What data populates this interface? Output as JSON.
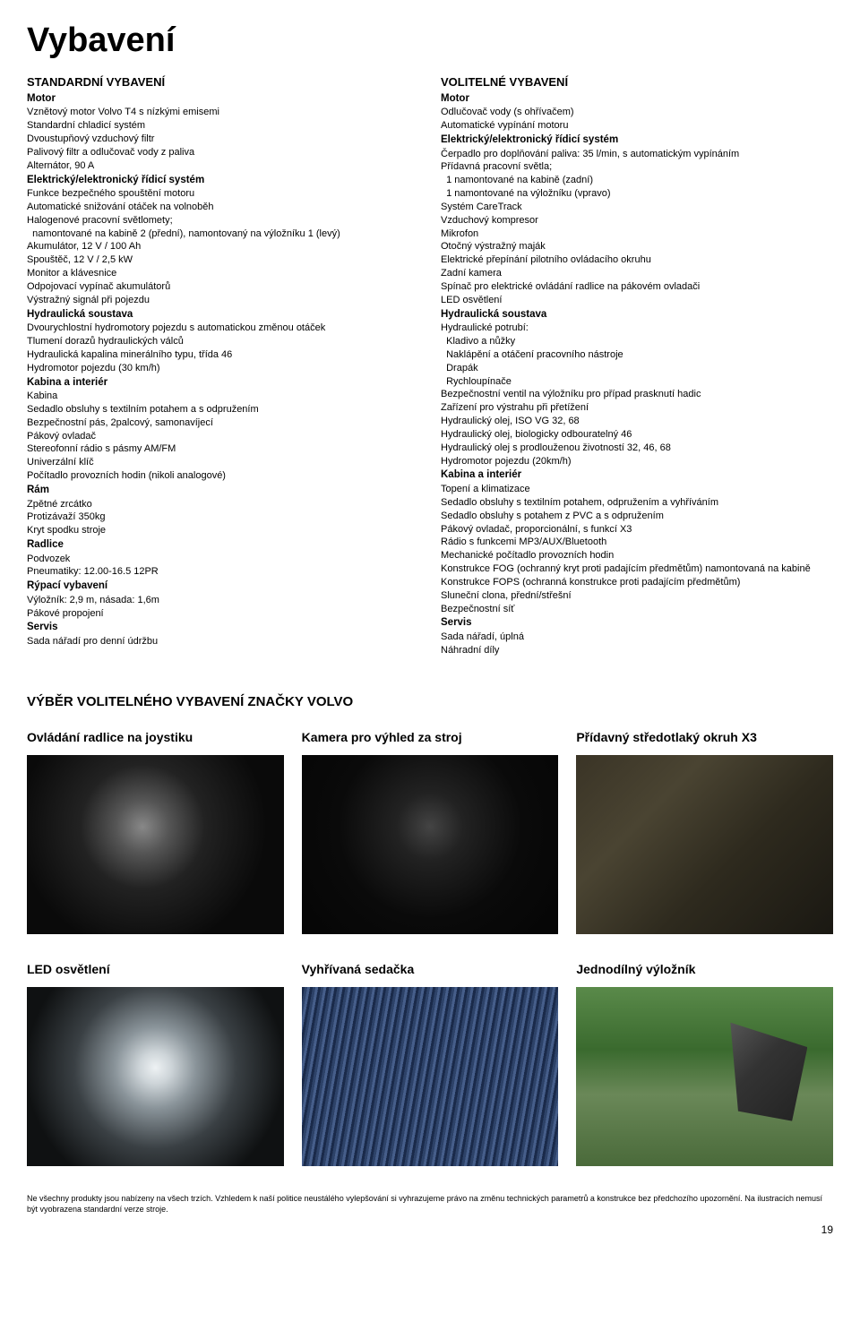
{
  "page_title": "Vybavení",
  "standard": {
    "heading": "STANDARDNÍ VYBAVENÍ",
    "groups": [
      {
        "title": "Motor",
        "items": [
          "Vznětový motor Volvo T4 s nízkými emisemi",
          "Standardní chladicí systém",
          "Dvoustupňový vzduchový filtr",
          "Palivový filtr a odlučovač vody z paliva",
          "Alternátor, 90 A"
        ]
      },
      {
        "title": "Elektrický/elektronický řídicí systém",
        "items": [
          "Funkce bezpečného spouštění motoru",
          "Automatické snižování otáček na volnoběh",
          "Halogenové pracovní světlomety;",
          "  namontované na kabině 2 (přední), namontovaný na výložníku 1 (levý)",
          "Akumulátor, 12 V / 100 Ah",
          "Spouštěč, 12 V / 2,5 kW",
          "Monitor a klávesnice",
          "Odpojovací vypínač akumulátorů",
          "Výstražný signál při pojezdu"
        ]
      },
      {
        "title": "Hydraulická soustava",
        "items": [
          "Dvourychlostní hydromotory pojezdu s automatickou změnou otáček",
          "Tlumení dorazů hydraulických válců",
          "Hydraulická kapalina minerálního typu, třída 46",
          "Hydromotor pojezdu (30 km/h)"
        ]
      },
      {
        "title": "Kabina a interiér",
        "items": [
          "Kabina",
          "Sedadlo obsluhy s textilním potahem a s odpružením",
          "Bezpečnostní pás, 2palcový, samonavíjecí",
          "Pákový ovladač",
          "Stereofonní rádio s pásmy AM/FM",
          "Univerzální klíč",
          "Počítadlo provozních hodin (nikoli analogové)"
        ]
      },
      {
        "title": "Rám",
        "items": [
          "Zpětné zrcátko",
          "Protizávaží 350kg",
          "Kryt spodku stroje"
        ]
      },
      {
        "title": "Radlice",
        "items": [
          "Podvozek",
          "Pneumatiky: 12.00-16.5 12PR"
        ]
      },
      {
        "title": "Rýpací vybavení",
        "items": [
          "Výložník: 2,9 m, násada: 1,6m",
          "Pákové propojení"
        ]
      },
      {
        "title": "Servis",
        "items": [
          "Sada nářadí pro denní údržbu"
        ]
      }
    ]
  },
  "optional": {
    "heading": "VOLITELNÉ VYBAVENÍ",
    "groups": [
      {
        "title": "Motor",
        "items": [
          "Odlučovač vody (s ohřívačem)",
          "Automatické vypínání motoru"
        ]
      },
      {
        "title": "Elektrický/elektronický řídicí systém",
        "items": [
          "Čerpadlo pro doplňování paliva: 35 l/min, s automatickým vypínáním",
          "Přídavná pracovní světla;",
          "  1 namontované na kabině (zadní)",
          "  1 namontované na výložníku (vpravo)",
          "Systém CareTrack",
          "Vzduchový kompresor",
          "Mikrofon",
          "Otočný výstražný maják",
          "Elektrické přepínání pilotního ovládacího okruhu",
          "Zadní kamera",
          "Spínač pro elektrické ovládání radlice na pákovém ovladači",
          "LED osvětlení"
        ]
      },
      {
        "title": "Hydraulická soustava",
        "items": [
          "Hydraulické potrubí:",
          "  Kladivo a nůžky",
          "  Naklápění a otáčení pracovního nástroje",
          "  Drapák",
          "  Rychloupínače",
          "Bezpečnostní ventil na výložníku pro případ prasknutí hadic",
          "Zařízení pro výstrahu při přetížení",
          "Hydraulický olej, ISO VG 32, 68",
          "Hydraulický olej, biologicky odbouratelný 46",
          "Hydraulický olej s prodlouženou životností 32, 46, 68",
          "Hydromotor pojezdu (20km/h)"
        ]
      },
      {
        "title": "Kabina a interiér",
        "items": [
          "Topení a klimatizace",
          "Sedadlo obsluhy s textilním potahem, odpružením a vyhříváním",
          "Sedadlo obsluhy s potahem z PVC a s odpružením",
          "Pákový ovladač, proporcionální, s funkcí X3",
          "Rádio s funkcemi MP3/AUX/Bluetooth",
          "Mechanické počítadlo provozních hodin",
          "Konstrukce FOG (ochranný kryt proti padajícím předmětům) namontovaná na kabině",
          "Konstrukce FOPS (ochranná konstrukce proti padajícím předmětům)",
          "Sluneční clona, přední/střešní",
          "Bezpečnostní síť"
        ]
      },
      {
        "title": "Servis",
        "items": [
          "Sada nářadí, úplná",
          "Náhradní díly"
        ]
      }
    ]
  },
  "features": {
    "heading": "VÝBĚR VOLITELNÉHO VYBAVENÍ ZNAČKY VOLVO",
    "row1": [
      {
        "title": "Ovládání radlice na joystiku",
        "imgclass": "img-joystick"
      },
      {
        "title": "Kamera pro výhled za stroj",
        "imgclass": "img-camera"
      },
      {
        "title": "Přídavný středotlaký okruh X3",
        "imgclass": "img-boom"
      }
    ],
    "row2": [
      {
        "title": "LED osvětlení",
        "imgclass": "img-led"
      },
      {
        "title": "Vyhřívaná sedačka",
        "imgclass": "img-seat"
      },
      {
        "title": "Jednodílný výložník",
        "imgclass": "img-monoboom"
      }
    ]
  },
  "disclaimer": "Ne všechny produkty jsou nabízeny na všech trzích. Vzhledem k naší politice neustálého vylepšování si vyhrazujeme právo na změnu technických parametrů a konstrukce bez předchozího upozornění. Na ilustracích nemusí být vyobrazena standardní verze stroje.",
  "page_number": "19"
}
